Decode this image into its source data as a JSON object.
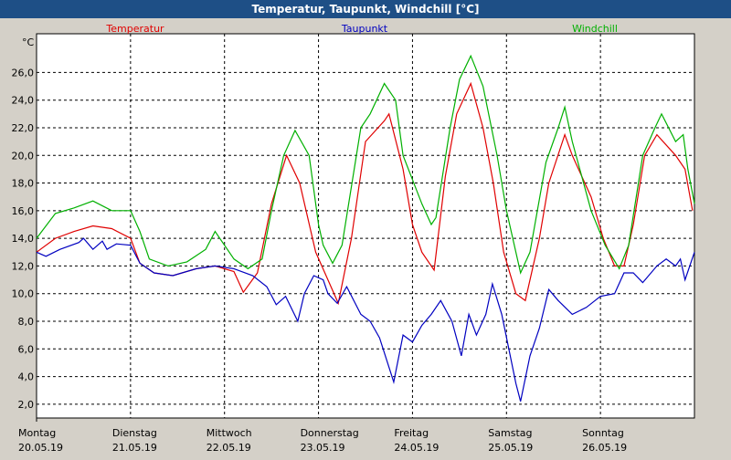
{
  "chart_data": {
    "type": "line",
    "title": "Temperatur, Taupunkt, Windchill [°C]",
    "y_unit": "°C",
    "xlim": [
      0,
      7
    ],
    "ylim": [
      1,
      28.8
    ],
    "grid": true,
    "xticks": [
      {
        "value": 0,
        "label": "Montag",
        "date": "20.05.19"
      },
      {
        "value": 1,
        "label": "Dienstag",
        "date": "21.05.19"
      },
      {
        "value": 2,
        "label": "Mittwoch",
        "date": "22.05.19"
      },
      {
        "value": 3,
        "label": "Donnerstag",
        "date": "23.05.19"
      },
      {
        "value": 4,
        "label": "Freitag",
        "date": "24.05.19"
      },
      {
        "value": 5,
        "label": "Samstag",
        "date": "25.05.19"
      },
      {
        "value": 6,
        "label": "Sonntag",
        "date": "26.05.19"
      }
    ],
    "yticks": [
      {
        "value": 2,
        "label": "2,0"
      },
      {
        "value": 4,
        "label": "4,0"
      },
      {
        "value": 6,
        "label": "6,0"
      },
      {
        "value": 8,
        "label": "8,0"
      },
      {
        "value": 10,
        "label": "10,0"
      },
      {
        "value": 12,
        "label": "12,0"
      },
      {
        "value": 14,
        "label": "14,0"
      },
      {
        "value": 16,
        "label": "16,0"
      },
      {
        "value": 18,
        "label": "18,0"
      },
      {
        "value": 20,
        "label": "20,0"
      },
      {
        "value": 22,
        "label": "22,0"
      },
      {
        "value": 24,
        "label": "24,0"
      },
      {
        "value": 26,
        "label": "26,0"
      }
    ],
    "series": [
      {
        "name": "Temperatur",
        "color": "#e00000",
        "x": [
          0,
          0.2,
          0.4,
          0.6,
          0.8,
          1.0,
          1.1,
          1.25,
          1.45,
          1.7,
          1.9,
          2.1,
          2.2,
          2.35,
          2.5,
          2.66,
          2.8,
          2.97,
          3.1,
          3.21,
          3.35,
          3.5,
          3.7,
          3.75,
          3.9,
          4.0,
          4.1,
          4.23,
          4.35,
          4.47,
          4.62,
          4.75,
          4.86,
          4.97,
          5.1,
          5.2,
          5.35,
          5.45,
          5.62,
          5.7,
          5.9,
          6.03,
          6.15,
          6.25,
          6.35,
          6.47,
          6.6,
          6.8,
          6.9,
          6.98
        ],
        "values": [
          13.0,
          14.0,
          14.5,
          14.9,
          14.7,
          14.0,
          12.2,
          11.5,
          11.3,
          11.8,
          12.0,
          11.6,
          10.1,
          11.5,
          16.5,
          20.0,
          18.0,
          13.0,
          11.0,
          9.3,
          14,
          21,
          22.5,
          23,
          19,
          15,
          13,
          11.7,
          18.5,
          23,
          25.2,
          22,
          18,
          13,
          10,
          9.5,
          14,
          18,
          21.5,
          20,
          17,
          14,
          12,
          12,
          15,
          20,
          21.5,
          20,
          19,
          16
        ]
      },
      {
        "name": "Taupunkt",
        "color": "#0000c0",
        "x": [
          0,
          0.1,
          0.25,
          0.45,
          0.5,
          0.6,
          0.7,
          0.75,
          0.85,
          1.0,
          1.1,
          1.25,
          1.45,
          1.7,
          1.9,
          2.1,
          2.3,
          2.45,
          2.55,
          2.65,
          2.78,
          2.85,
          2.95,
          3.05,
          3.1,
          3.2,
          3.3,
          3.45,
          3.55,
          3.65,
          3.8,
          3.9,
          4.0,
          4.1,
          4.2,
          4.3,
          4.42,
          4.52,
          4.6,
          4.68,
          4.78,
          4.85,
          4.95,
          5.1,
          5.15,
          5.25,
          5.35,
          5.45,
          5.55,
          5.7,
          5.85,
          6.0,
          6.15,
          6.25,
          6.35,
          6.45,
          6.6,
          6.7,
          6.8,
          6.85,
          6.9,
          7.0
        ],
        "values": [
          13.0,
          12.7,
          13.2,
          13.7,
          14.0,
          13.2,
          13.8,
          13.2,
          13.6,
          13.5,
          12.2,
          11.5,
          11.3,
          11.8,
          12.0,
          11.8,
          11.3,
          10.5,
          9.2,
          9.8,
          8.0,
          10,
          11.3,
          11,
          10,
          9.3,
          10.5,
          8.5,
          8,
          6.8,
          3.6,
          7,
          6.5,
          7.7,
          8.5,
          9.5,
          8,
          5.5,
          8.5,
          7,
          8.5,
          10.7,
          8.5,
          3.5,
          2.2,
          5.5,
          7.5,
          10.3,
          9.5,
          8.5,
          9,
          9.8,
          10,
          11.5,
          11.5,
          10.8,
          12,
          12.5,
          12,
          12.5,
          11,
          13
        ]
      },
      {
        "name": "Windchill",
        "color": "#00b000",
        "x": [
          0,
          0.2,
          0.4,
          0.6,
          0.8,
          1.0,
          1.1,
          1.2,
          1.4,
          1.6,
          1.8,
          1.9,
          2.0,
          2.1,
          2.25,
          2.4,
          2.5,
          2.63,
          2.75,
          2.9,
          3.0,
          3.05,
          3.15,
          3.25,
          3.45,
          3.55,
          3.7,
          3.82,
          3.9,
          4.1,
          4.2,
          4.25,
          4.4,
          4.5,
          4.62,
          4.75,
          4.9,
          5.0,
          5.15,
          5.25,
          5.42,
          5.55,
          5.62,
          5.7,
          5.9,
          6.05,
          6.2,
          6.3,
          6.45,
          6.58,
          6.65,
          6.8,
          6.88,
          6.93,
          7.0
        ],
        "values": [
          14.0,
          15.8,
          16.2,
          16.7,
          16,
          16,
          14.5,
          12.5,
          12,
          12.3,
          13.2,
          14.5,
          13.5,
          12.5,
          11.8,
          12.5,
          16,
          20,
          21.8,
          20,
          15,
          13.5,
          12.2,
          13.5,
          22,
          23,
          25.2,
          24,
          20,
          16.5,
          15,
          15.5,
          22,
          25.5,
          27.2,
          25,
          20,
          16,
          11.5,
          13,
          19.5,
          22,
          23.5,
          21,
          16,
          13.5,
          11.8,
          13.5,
          20,
          22,
          23,
          21,
          21.5,
          19,
          16.5
        ]
      }
    ]
  }
}
